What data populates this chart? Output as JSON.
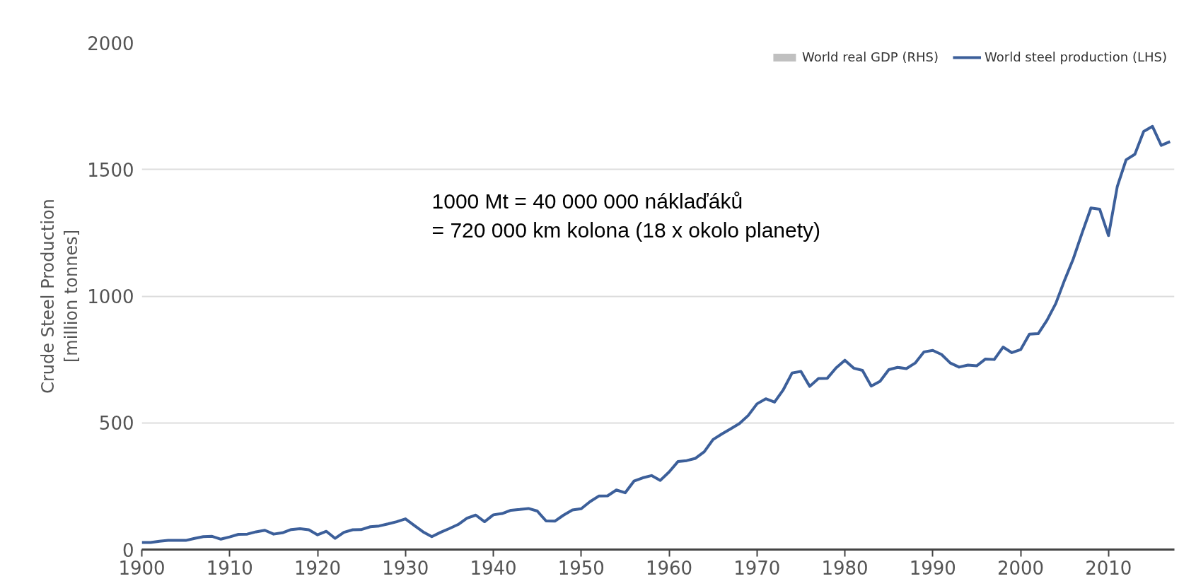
{
  "chart_data": {
    "type": "line",
    "ylabel": "Crude Steel Production\n[million tonnes]",
    "x": [
      1900,
      1901,
      1902,
      1903,
      1904,
      1905,
      1906,
      1907,
      1908,
      1909,
      1910,
      1911,
      1912,
      1913,
      1914,
      1915,
      1916,
      1917,
      1918,
      1919,
      1920,
      1921,
      1922,
      1923,
      1924,
      1925,
      1926,
      1927,
      1928,
      1929,
      1930,
      1931,
      1932,
      1933,
      1934,
      1935,
      1936,
      1937,
      1938,
      1939,
      1940,
      1941,
      1942,
      1943,
      1944,
      1945,
      1946,
      1947,
      1948,
      1949,
      1950,
      1951,
      1952,
      1953,
      1954,
      1955,
      1956,
      1957,
      1958,
      1959,
      1960,
      1961,
      1962,
      1963,
      1964,
      1965,
      1966,
      1967,
      1968,
      1969,
      1970,
      1971,
      1972,
      1973,
      1974,
      1975,
      1976,
      1977,
      1978,
      1979,
      1980,
      1981,
      1982,
      1983,
      1984,
      1985,
      1986,
      1987,
      1988,
      1989,
      1990,
      1991,
      1992,
      1993,
      1994,
      1995,
      1996,
      1997,
      1998,
      1999,
      2000,
      2001,
      2002,
      2003,
      2004,
      2005,
      2006,
      2007,
      2008,
      2009,
      2010,
      2011,
      2012,
      2013,
      2014,
      2015,
      2016,
      2017
    ],
    "series": [
      {
        "name": "World real GDP (RHS)",
        "type": "area",
        "color": "#c0c0c0",
        "values": [
          null,
          null,
          null,
          null,
          null,
          null,
          null,
          null,
          null,
          null,
          null,
          null,
          null,
          null,
          null,
          null,
          null,
          null,
          null,
          null,
          null,
          null,
          null,
          null,
          null,
          null,
          null,
          null,
          null,
          null,
          null,
          null,
          null,
          null,
          null,
          null,
          null,
          null,
          null,
          null,
          null,
          null,
          null,
          null,
          null,
          null,
          null,
          null,
          null,
          null,
          null,
          null,
          null,
          null,
          null,
          null,
          null,
          null,
          null,
          null,
          null,
          null,
          null,
          null,
          null,
          null,
          null,
          null,
          null,
          null,
          null,
          null,
          null,
          null,
          null,
          null,
          null,
          null,
          null,
          null,
          null,
          null,
          null,
          null,
          null,
          null,
          null,
          null,
          null,
          null,
          null,
          null,
          null,
          null,
          null,
          null,
          null,
          null,
          null,
          null,
          null,
          null,
          null,
          null,
          null,
          null,
          null,
          null,
          null,
          null,
          null,
          null,
          null,
          null,
          null,
          null,
          null,
          null
        ]
      },
      {
        "name": "World steel production (LHS)",
        "color": "#3c5f9a",
        "values": [
          28,
          28,
          33,
          36,
          36,
          36,
          44,
          51,
          52,
          41,
          50,
          60,
          61,
          70,
          76,
          61,
          66,
          79,
          82,
          78,
          58,
          72,
          44,
          68,
          78,
          79,
          90,
          93,
          101,
          110,
          121,
          95,
          70,
          51,
          68,
          83,
          99,
          124,
          136,
          110,
          137,
          142,
          155,
          158,
          162,
          152,
          113,
          112,
          136,
          156,
          161,
          189,
          211,
          212,
          235,
          224,
          270,
          283,
          292,
          273,
          306,
          347,
          351,
          360,
          386,
          434,
          456,
          476,
          497,
          529,
          575,
          595,
          582,
          631,
          697,
          703,
          644,
          675,
          676,
          717,
          747,
          716,
          707,
          645,
          664,
          710,
          719,
          714,
          736,
          780,
          786,
          770,
          736,
          720,
          728,
          725,
          752,
          750,
          799,
          777,
          789,
          850,
          852,
          905,
          971,
          1063,
          1148,
          1250,
          1348,
          1343,
          1239,
          1433,
          1538,
          1560,
          1650,
          1670,
          1595,
          1610
        ]
      }
    ],
    "xlim": [
      1900,
      2017.5
    ],
    "ylim": [
      0,
      2000
    ],
    "xticks": [
      1900,
      1910,
      1920,
      1930,
      1940,
      1950,
      1960,
      1970,
      1980,
      1990,
      2000,
      2010
    ],
    "yticks": [
      0,
      500,
      1000,
      1500,
      2000
    ],
    "grid": "y",
    "legend": "top right",
    "line_style": "solid",
    "marker": "none",
    "annotations": [
      "1000 Mt = 40 000 000 náklaďáků\n= 720 000 km kolona (18 x okolo planety)"
    ]
  }
}
